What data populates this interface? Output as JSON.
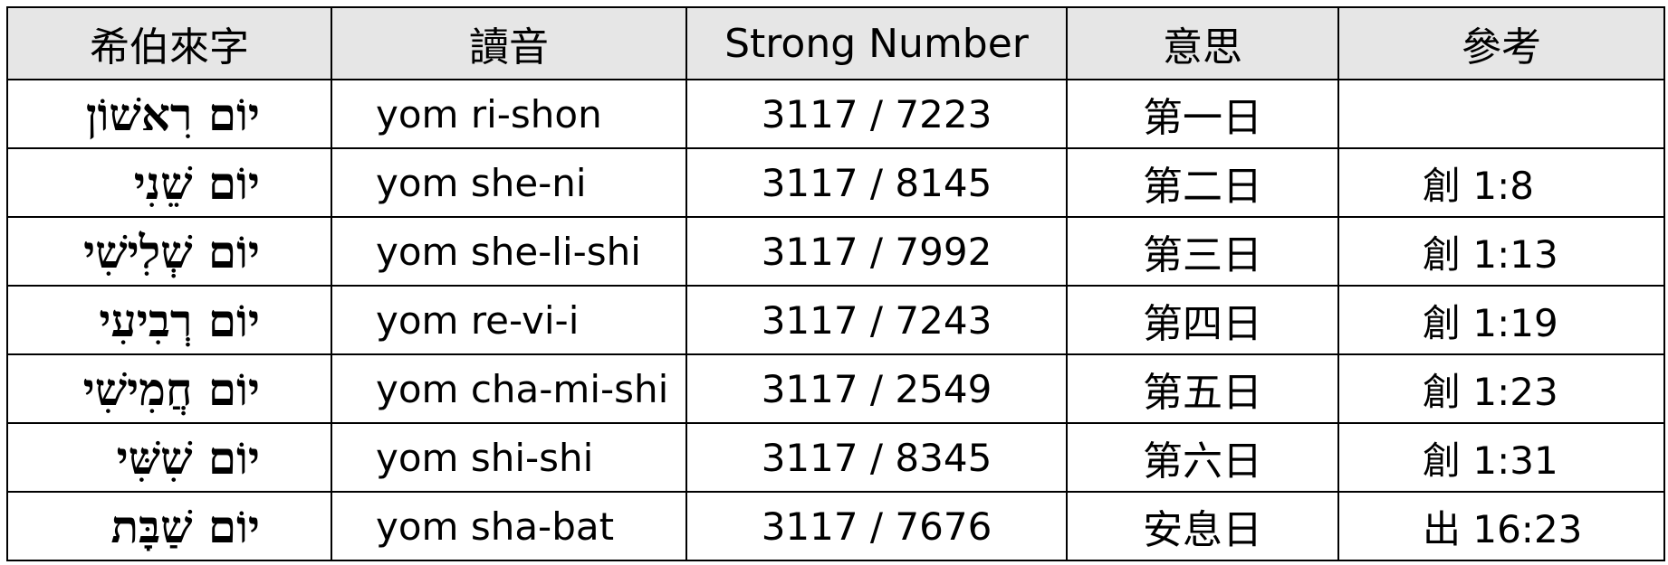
{
  "table": {
    "headers": [
      "希伯來字",
      "讀音",
      "Strong Number",
      "意思",
      "參考"
    ],
    "rows": [
      {
        "hebrew": "יוֹם רִאשׁוֹן",
        "reading": "yom ri-shon",
        "strong": "3117 / 7223",
        "meaning": "第一日",
        "ref": ""
      },
      {
        "hebrew": "יוֹם שֵׁנִי",
        "reading": "yom she-ni",
        "strong": "3117 / 8145",
        "meaning": "第二日",
        "ref": "創 1:8"
      },
      {
        "hebrew": "יוֹם שְׁלִישִׁי",
        "reading": "yom she-li-shi",
        "strong": "3117 / 7992",
        "meaning": "第三日",
        "ref": "創 1:13"
      },
      {
        "hebrew": "יוֹם רְבִיעִי",
        "reading": "yom re-vi-i",
        "strong": "3117 / 7243",
        "meaning": "第四日",
        "ref": "創 1:19"
      },
      {
        "hebrew": "יוֹם חֲמִישִׁי",
        "reading": "yom cha-mi-shi",
        "strong": "3117 / 2549",
        "meaning": "第五日",
        "ref": "創 1:23"
      },
      {
        "hebrew": "יוֹם שִׁשִּׁי",
        "reading": "yom shi-shi",
        "strong": "3117 / 8345",
        "meaning": "第六日",
        "ref": "創 1:31"
      },
      {
        "hebrew": "יוֹם שַׁבָּת",
        "reading": "yom sha-bat",
        "strong": "3117 / 7676",
        "meaning": "安息日",
        "ref": "出 16:23"
      }
    ]
  }
}
